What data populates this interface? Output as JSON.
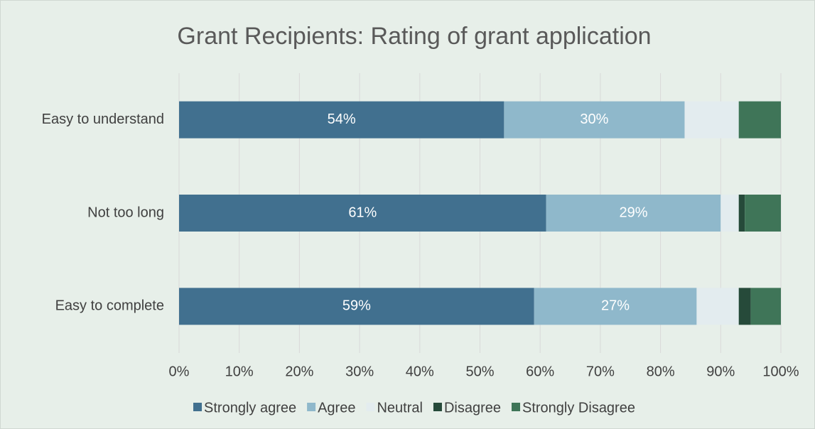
{
  "chart_data": {
    "type": "stacked-bar-horizontal",
    "title": "Grant Recipients: Rating of grant application",
    "categories": [
      "Easy to understand",
      "Not too long",
      "Easy to complete"
    ],
    "series": [
      {
        "name": "Strongly agree",
        "color": "#41708f",
        "values": [
          54,
          61,
          59
        ],
        "value_labels": [
          "54%",
          "61%",
          "59%"
        ]
      },
      {
        "name": "Agree",
        "color": "#8fb8cb",
        "values": [
          30,
          29,
          27
        ],
        "value_labels": [
          "30%",
          "29%",
          "27%"
        ]
      },
      {
        "name": "Neutral",
        "color": "#e3ecef",
        "values": [
          9,
          3,
          7
        ]
      },
      {
        "name": "Disagree",
        "color": "#264a3a",
        "values": [
          0,
          1,
          2
        ]
      },
      {
        "name": "Strongly Disagree",
        "color": "#3f7558",
        "values": [
          7,
          6,
          5
        ]
      }
    ],
    "xlim": [
      0,
      100
    ],
    "xticks": [
      {
        "value": 0,
        "label": "0%"
      },
      {
        "value": 10,
        "label": "10%"
      },
      {
        "value": 20,
        "label": "20%"
      },
      {
        "value": 30,
        "label": "30%"
      },
      {
        "value": 40,
        "label": "40%"
      },
      {
        "value": 50,
        "label": "50%"
      },
      {
        "value": 60,
        "label": "60%"
      },
      {
        "value": 70,
        "label": "70%"
      },
      {
        "value": 80,
        "label": "80%"
      },
      {
        "value": 90,
        "label": "90%"
      },
      {
        "value": 100,
        "label": "100%"
      }
    ],
    "grid": true,
    "legend": "bottom"
  }
}
